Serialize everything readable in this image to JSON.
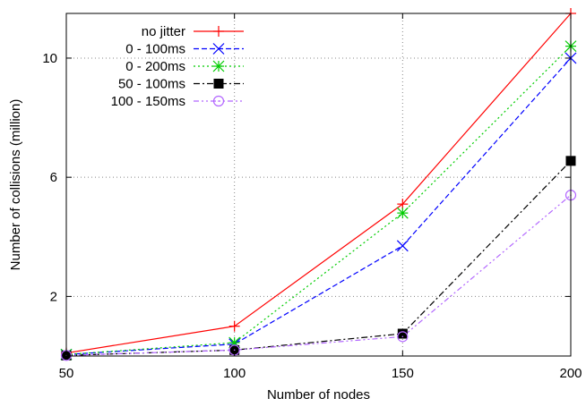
{
  "chart_data": {
    "type": "line",
    "title": "",
    "xlabel": "Number of nodes",
    "ylabel": "Number of collisions  (million)",
    "x": [
      50,
      100,
      150,
      200
    ],
    "xlim": [
      50,
      200
    ],
    "ylim": [
      0,
      11.5
    ],
    "xticks": [
      50,
      100,
      150,
      200
    ],
    "yticks": [
      2,
      6,
      10
    ],
    "xtick_labels": [
      "50",
      "100",
      "150",
      "200"
    ],
    "ytick_labels": [
      "2",
      "6",
      "10"
    ],
    "grid": true,
    "grid_style": "dotted",
    "legend_position": "top-left",
    "series": [
      {
        "name": "no jitter",
        "values": [
          0.1,
          1.0,
          5.1,
          11.5
        ],
        "color": "#ff0000",
        "dash": "solid",
        "marker": "plus"
      },
      {
        "name": "0 - 100ms",
        "values": [
          0.05,
          0.4,
          3.7,
          10.0
        ],
        "color": "#0000ff",
        "dash": "dashed",
        "marker": "cross"
      },
      {
        "name": "0 - 200ms",
        "values": [
          0.05,
          0.45,
          4.8,
          10.4
        ],
        "color": "#00cc00",
        "dash": "dotted",
        "marker": "star"
      },
      {
        "name": "50 - 100ms",
        "values": [
          0.02,
          0.2,
          0.75,
          6.55
        ],
        "color": "#000000",
        "dash": "dashdot",
        "marker": "filled-square"
      },
      {
        "name": "100 - 150ms",
        "values": [
          0.02,
          0.2,
          0.65,
          5.4
        ],
        "color": "#b266ff",
        "dash": "dashdotdot",
        "marker": "open-circle"
      }
    ]
  }
}
